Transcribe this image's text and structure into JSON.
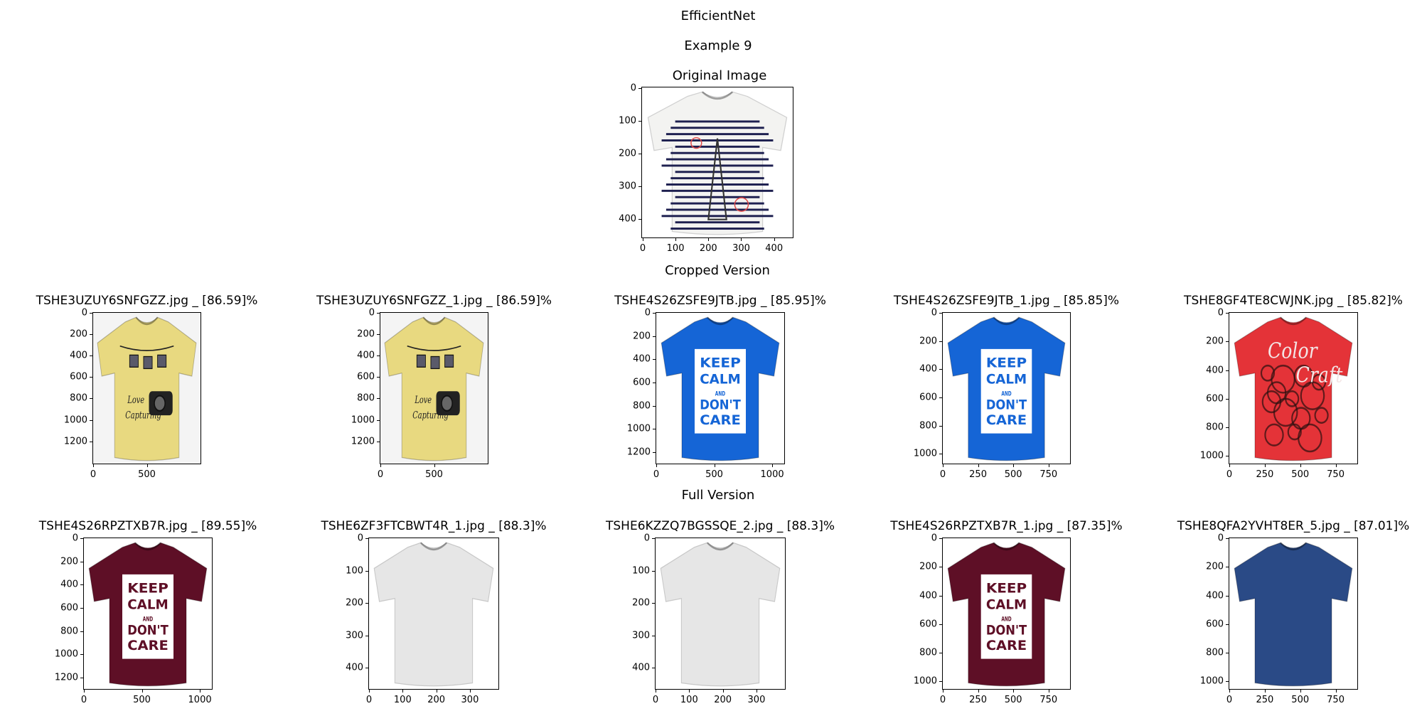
{
  "figure": {
    "title": "EfficientNet",
    "subtitle": "Example 9",
    "original_label": "Original Image",
    "cropped_label": "Cropped Version",
    "full_label": "Full Version"
  },
  "original": {
    "x_ticks": [
      "0",
      "100",
      "200",
      "300",
      "400"
    ],
    "y_ticks": [
      "0",
      "100",
      "200",
      "300",
      "400"
    ],
    "shirt_color": "#f3f3f1",
    "stripe_color": "#1e2050"
  },
  "cropped": [
    {
      "title": "TSHE3UZUY6SNFGZZ.jpg _ [86.59]%",
      "x_ticks": [
        "0",
        "500"
      ],
      "y_ticks": [
        "0",
        "200",
        "400",
        "600",
        "800",
        "1000",
        "1200"
      ],
      "shirt_color": "#e8d980",
      "graphic": "camera-print"
    },
    {
      "title": "TSHE3UZUY6SNFGZZ_1.jpg _ [86.59]%",
      "x_ticks": [
        "0",
        "500"
      ],
      "y_ticks": [
        "0",
        "200",
        "400",
        "600",
        "800",
        "1000",
        "1200"
      ],
      "shirt_color": "#e8d980",
      "graphic": "camera-print"
    },
    {
      "title": "TSHE4S26ZSFE9JTB.jpg _ [85.95]%",
      "x_ticks": [
        "0",
        "500",
        "1000"
      ],
      "y_ticks": [
        "0",
        "200",
        "400",
        "600",
        "800",
        "1000",
        "1200"
      ],
      "shirt_color": "#1565d6",
      "graphic": "keep-calm"
    },
    {
      "title": "TSHE4S26ZSFE9JTB_1.jpg _ [85.85]%",
      "x_ticks": [
        "0",
        "250",
        "500",
        "750"
      ],
      "y_ticks": [
        "0",
        "200",
        "400",
        "600",
        "800",
        "1000"
      ],
      "shirt_color": "#1565d6",
      "graphic": "keep-calm"
    },
    {
      "title": "TSHE8GF4TE8CWJNK.jpg _ [85.82]%",
      "x_ticks": [
        "0",
        "250",
        "500",
        "750"
      ],
      "y_ticks": [
        "0",
        "200",
        "400",
        "600",
        "800",
        "1000"
      ],
      "shirt_color": "#e43338",
      "graphic": "color-craft"
    }
  ],
  "full": [
    {
      "title": "TSHE4S26RPZTXB7R.jpg _ [89.55]%",
      "x_ticks": [
        "0",
        "500",
        "1000"
      ],
      "y_ticks": [
        "0",
        "200",
        "400",
        "600",
        "800",
        "1000",
        "1200"
      ],
      "shirt_color": "#5e0f26",
      "graphic": "keep-calm"
    },
    {
      "title": "TSHE6ZF3FTCBWT4R_1.jpg _ [88.3]%",
      "x_ticks": [
        "0",
        "100",
        "200",
        "300"
      ],
      "y_ticks": [
        "0",
        "100",
        "200",
        "300",
        "400"
      ],
      "shirt_color": "#e6e6e6",
      "graphic": "plain"
    },
    {
      "title": "TSHE6KZZQ7BGSSQE_2.jpg _ [88.3]%",
      "x_ticks": [
        "0",
        "100",
        "200",
        "300"
      ],
      "y_ticks": [
        "0",
        "100",
        "200",
        "300",
        "400"
      ],
      "shirt_color": "#e6e6e6",
      "graphic": "plain"
    },
    {
      "title": "TSHE4S26RPZTXB7R_1.jpg _ [87.35]%",
      "x_ticks": [
        "0",
        "250",
        "500",
        "750"
      ],
      "y_ticks": [
        "0",
        "200",
        "400",
        "600",
        "800",
        "1000"
      ],
      "shirt_color": "#5e0f26",
      "graphic": "keep-calm"
    },
    {
      "title": "TSHE8QFA2YVHT8ER_5.jpg _ [87.01]%",
      "x_ticks": [
        "0",
        "250",
        "500",
        "750"
      ],
      "y_ticks": [
        "0",
        "200",
        "400",
        "600",
        "800",
        "1000"
      ],
      "shirt_color": "#2a4a86",
      "graphic": "plain"
    }
  ],
  "print_text": {
    "keep_calm": [
      "KEEP",
      "CALM",
      "AND",
      "DON'T",
      "CARE"
    ],
    "color_craft": [
      "Color",
      "Craft"
    ],
    "camera_caption": [
      "Love",
      "Capturing"
    ]
  }
}
